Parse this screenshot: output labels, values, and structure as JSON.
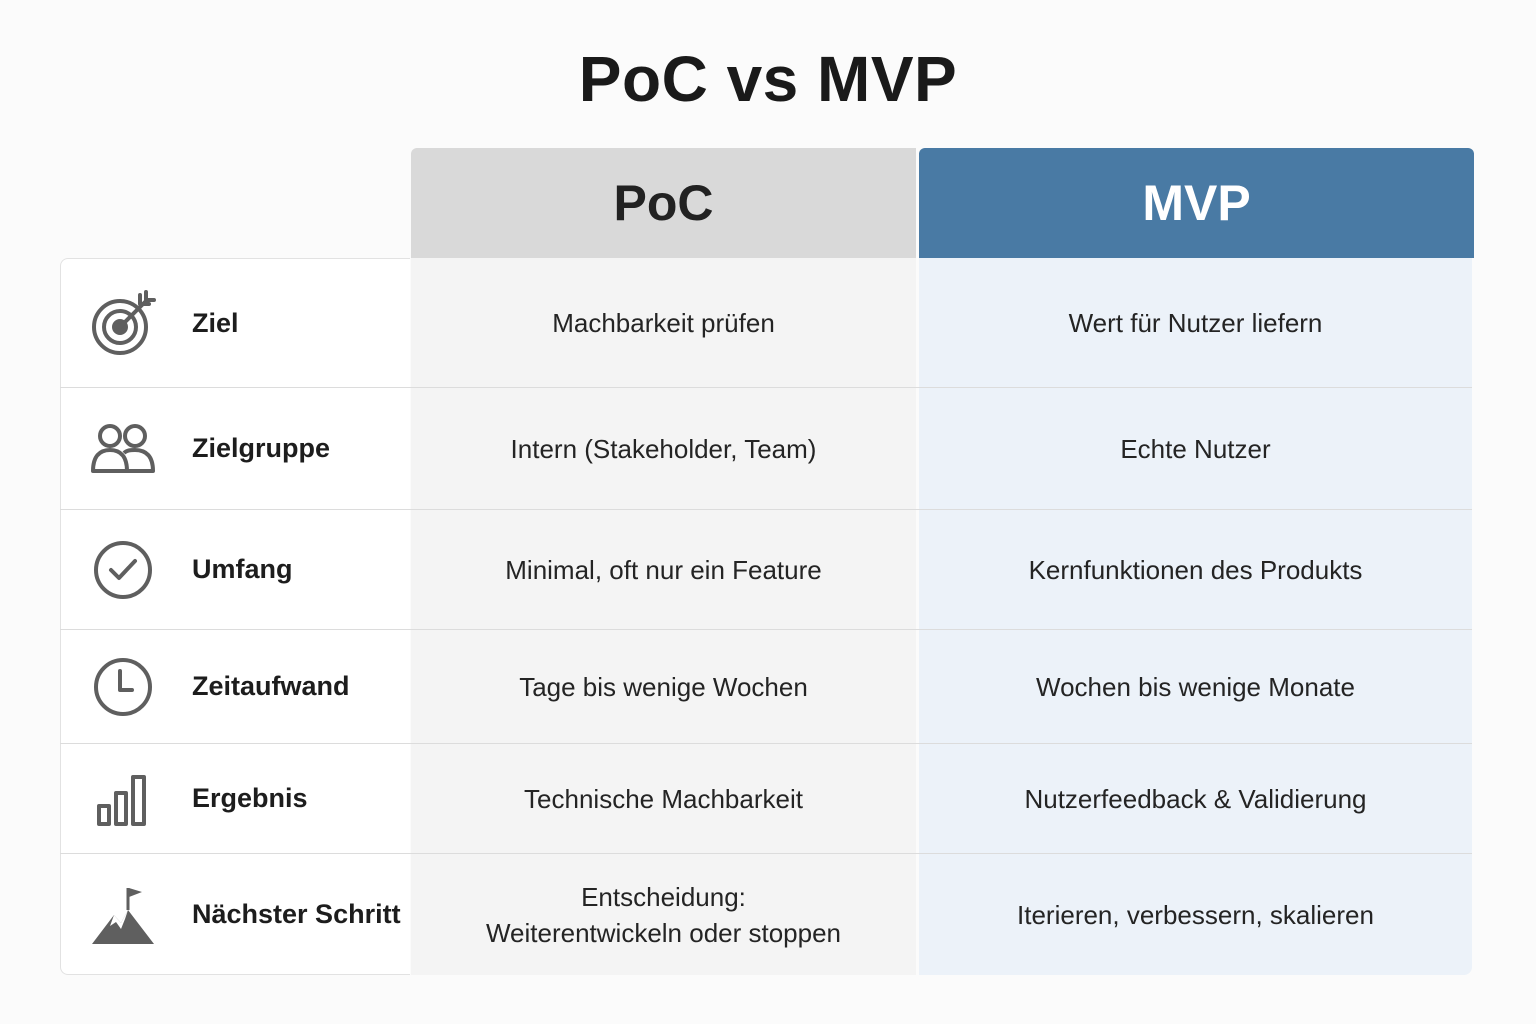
{
  "title": "PoC vs MVP",
  "columns": {
    "poc": "PoC",
    "mvp": "MVP"
  },
  "colors": {
    "mvp_header": "#497aa4",
    "poc_header": "#d9d9d9",
    "mvp_column": "#ecf2f9",
    "poc_column": "#f4f4f4",
    "icon": "#5f5f5f"
  },
  "rows": [
    {
      "icon": "target-icon",
      "label": "Ziel",
      "poc": "Machbarkeit prüfen",
      "mvp": "Wert für Nutzer liefern"
    },
    {
      "icon": "users-icon",
      "label": "Zielgruppe",
      "poc": "Intern (Stakeholder, Team)",
      "mvp": "Echte Nutzer"
    },
    {
      "icon": "check-circle-icon",
      "label": "Umfang",
      "poc": "Minimal, oft nur ein Feature",
      "mvp": "Kernfunktionen des Produkts"
    },
    {
      "icon": "clock-icon",
      "label": "Zeitaufwand",
      "poc": "Tage bis wenige Wochen",
      "mvp": "Wochen bis wenige Monate"
    },
    {
      "icon": "bar-chart-icon",
      "label": "Ergebnis",
      "poc": "Technische Machbarkeit",
      "mvp": "Nutzerfeedback & Validierung"
    },
    {
      "icon": "mountain-flag-icon",
      "label": "Nächster Schritt",
      "poc_lines": [
        "Entscheidung:",
        "Weiterentwickeln oder stoppen"
      ],
      "mvp": "Iterieren, verbessern, skalieren"
    }
  ]
}
